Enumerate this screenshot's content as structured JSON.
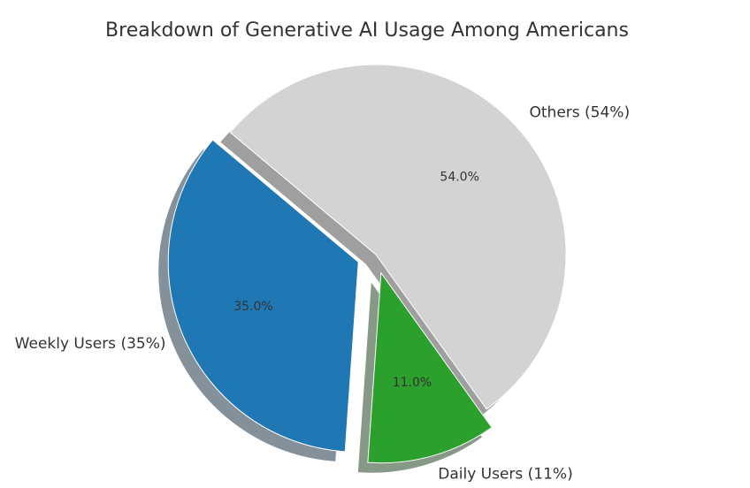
{
  "chart_data": {
    "type": "pie",
    "title": "Breakdown of Generative AI Usage Among Americans",
    "categories": [
      "Weekly Users (35%)",
      "Daily Users (11%)",
      "Others (54%)"
    ],
    "values": [
      35,
      11,
      54
    ],
    "value_labels": [
      "35.0%",
      "11.0%",
      "54.0%"
    ],
    "colors": [
      "#1f77b4",
      "#2ca02c",
      "#d3d3d3"
    ],
    "explode": [
      0.1,
      0.1,
      0
    ],
    "startangle": 140,
    "shadow": true
  }
}
